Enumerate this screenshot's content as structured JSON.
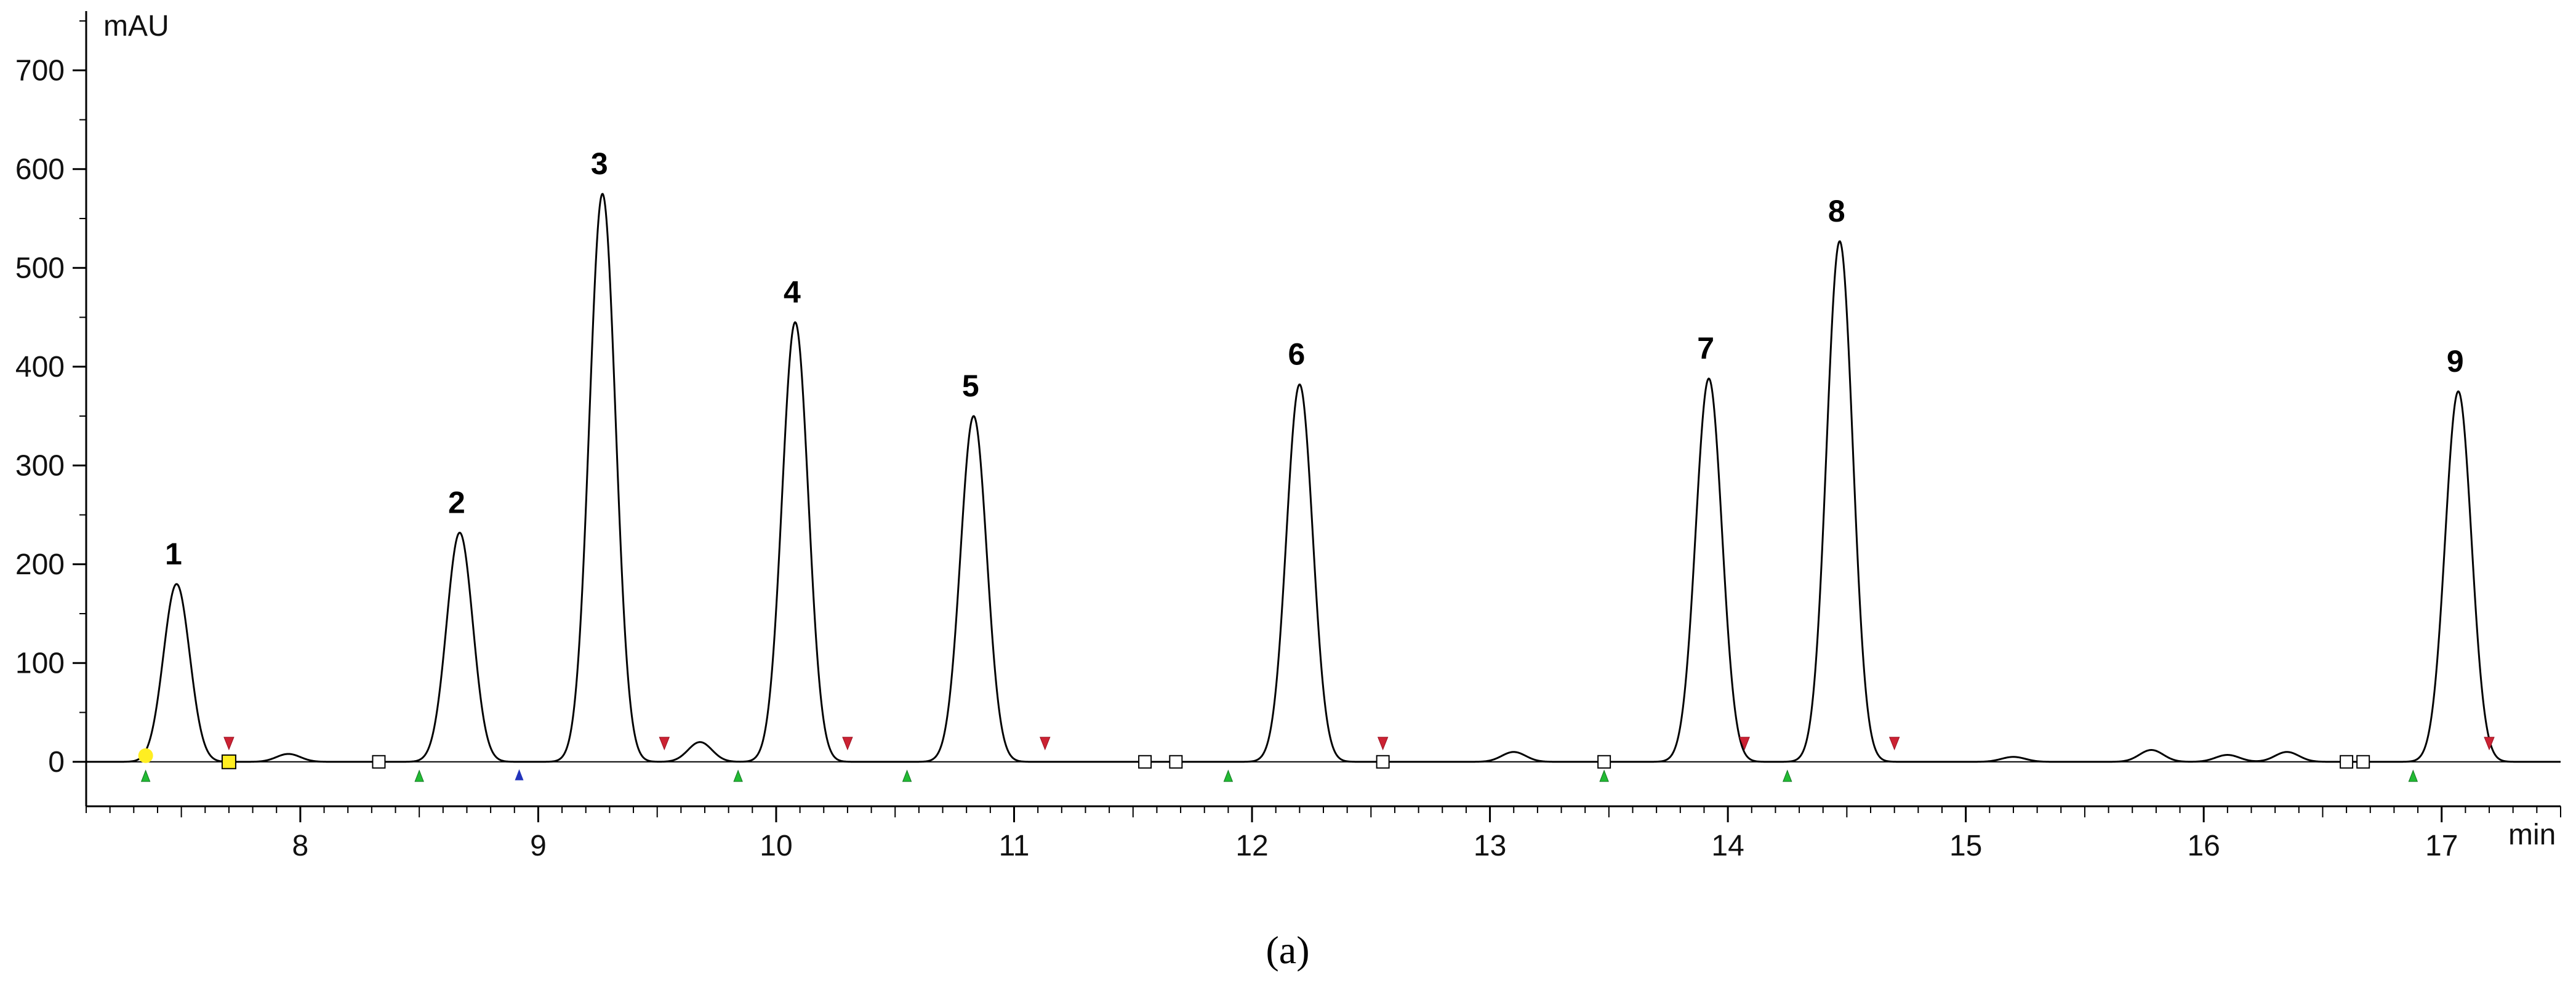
{
  "chart_data": {
    "type": "line",
    "ylabel": "mAU",
    "xlabel": "min",
    "xlim": [
      7.1,
      17.5
    ],
    "ylim": [
      -45,
      760
    ],
    "x_ticks": [
      8,
      9,
      10,
      11,
      12,
      13,
      14,
      15,
      16,
      17
    ],
    "y_ticks": [
      0,
      100,
      200,
      300,
      400,
      500,
      600,
      700
    ],
    "peaks": [
      {
        "label": "1",
        "x": 7.48,
        "y": 180
      },
      {
        "label": "2",
        "x": 8.67,
        "y": 232
      },
      {
        "label": "3",
        "x": 9.27,
        "y": 575
      },
      {
        "label": "4",
        "x": 10.08,
        "y": 445
      },
      {
        "label": "5",
        "x": 10.83,
        "y": 350
      },
      {
        "label": "6",
        "x": 12.2,
        "y": 382
      },
      {
        "label": "7",
        "x": 13.92,
        "y": 388
      },
      {
        "label": "8",
        "x": 14.47,
        "y": 527
      },
      {
        "label": "9",
        "x": 17.07,
        "y": 375
      }
    ],
    "minor_peaks": [
      {
        "x": 7.95,
        "y": 8
      },
      {
        "x": 9.68,
        "y": 20
      },
      {
        "x": 13.1,
        "y": 10
      },
      {
        "x": 15.2,
        "y": 5
      },
      {
        "x": 15.78,
        "y": 12
      },
      {
        "x": 16.1,
        "y": 7
      },
      {
        "x": 16.35,
        "y": 10
      }
    ],
    "markers": {
      "start_green": [
        7.35,
        8.5,
        9.84,
        10.55,
        11.9,
        13.48,
        14.25,
        16.88
      ],
      "start_blue": [
        8.92
      ],
      "end_red": [
        7.7,
        9.53,
        10.3,
        11.13,
        12.55,
        14.07,
        14.7,
        17.2
      ],
      "box_open": [
        7.7,
        8.33,
        11.55,
        11.68,
        12.55,
        13.48,
        16.6,
        16.67
      ],
      "box_yellow": [
        7.7
      ],
      "dot_yellow": [
        7.35
      ]
    }
  },
  "caption": "(a)"
}
